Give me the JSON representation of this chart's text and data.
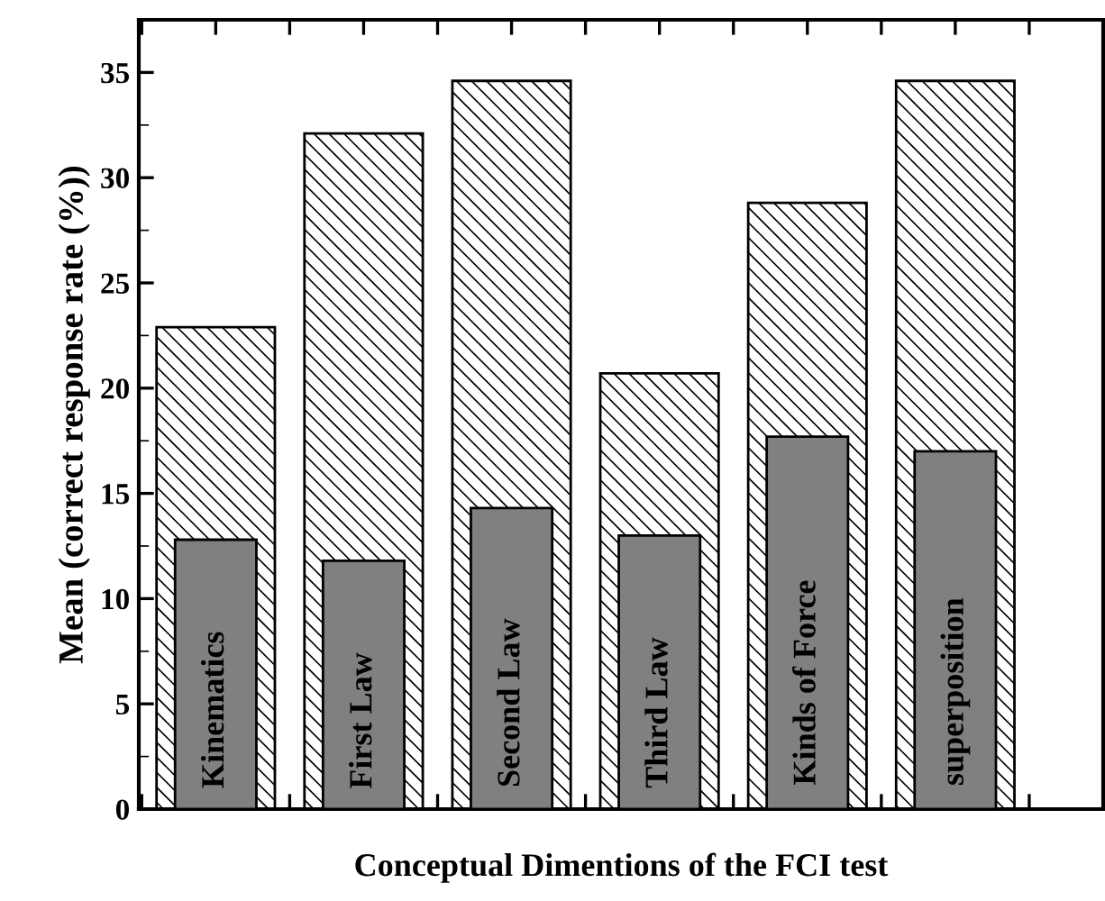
{
  "chart_data": {
    "type": "bar",
    "xlabel": "Conceptual Dimentions of the FCI test",
    "ylabel": "Mean (correct response rate (%))",
    "categories": [
      "Kinematics",
      "First Law",
      "Second Law",
      "Third Law",
      "Kinds of Force",
      "superposition"
    ],
    "series": [
      {
        "color": "#000000",
        "values": [
          22.9,
          32.1,
          34.6,
          20.7,
          28.8,
          34.6
        ]
      },
      {
        "color": "#808080",
        "values": [
          12.8,
          11.8,
          14.3,
          13.0,
          17.7,
          17.0
        ]
      }
    ],
    "ylim": [
      0,
      37.5
    ],
    "yticks": [
      0,
      5,
      10,
      15,
      20,
      25,
      30,
      35
    ],
    "grid": false,
    "legend": false
  }
}
